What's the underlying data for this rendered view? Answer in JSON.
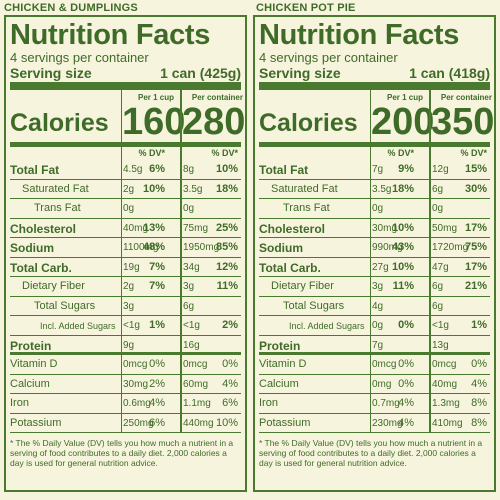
{
  "panels": [
    {
      "product": "CHICKEN & DUMPLINGS",
      "title": "Nutrition Facts",
      "servings": "4 servings per container",
      "serving_size_label": "Serving size",
      "serving_size_value": "1 can (425g)",
      "per1_header": "Per 1 cup",
      "per2_header": "Per container",
      "calories_label": "Calories",
      "calories1": "160",
      "calories2": "280",
      "dv_header": "% DV*",
      "rows": [
        {
          "label": "Total Fat",
          "a1": "4.5g",
          "d1": "6%",
          "a2": "8g",
          "d2": "10%"
        },
        {
          "label": "Saturated Fat",
          "a1": "2g",
          "d1": "10%",
          "a2": "3.5g",
          "d2": "18%"
        },
        {
          "label": "Trans Fat",
          "a1": "0g",
          "d1": "",
          "a2": "0g",
          "d2": ""
        },
        {
          "label": "Cholesterol",
          "a1": "40mg",
          "d1": "13%",
          "a2": "75mg",
          "d2": "25%"
        },
        {
          "label": "Sodium",
          "a1": "1100mg",
          "d1": "48%",
          "a2": "1950mg",
          "d2": "85%"
        },
        {
          "label": "Total Carb.",
          "a1": "19g",
          "d1": "7%",
          "a2": "34g",
          "d2": "12%"
        },
        {
          "label": "Dietary Fiber",
          "a1": "2g",
          "d1": "7%",
          "a2": "3g",
          "d2": "11%"
        },
        {
          "label": "Total Sugars",
          "a1": "3g",
          "d1": "",
          "a2": "6g",
          "d2": ""
        },
        {
          "label": "Incl. Added Sugars",
          "a1": "<1g",
          "d1": "1%",
          "a2": "<1g",
          "d2": "2%"
        },
        {
          "label": "Protein",
          "a1": "9g",
          "d1": "",
          "a2": "16g",
          "d2": ""
        },
        {
          "label": "Vitamin D",
          "a1": "0mcg",
          "d1": "0%",
          "a2": "0mcg",
          "d2": "0%"
        },
        {
          "label": "Calcium",
          "a1": "30mg",
          "d1": "2%",
          "a2": "60mg",
          "d2": "4%"
        },
        {
          "label": "Iron",
          "a1": "0.6mg",
          "d1": "4%",
          "a2": "1.1mg",
          "d2": "6%"
        },
        {
          "label": "Potassium",
          "a1": "250mg",
          "d1": "6%",
          "a2": "440mg",
          "d2": "10%"
        }
      ],
      "footnote": "* The % Daily Value (DV) tells you how much a nutrient in a serving of food contributes to a daily diet. 2,000 calories a day is used for general nutrition advice."
    },
    {
      "product": "CHICKEN POT PIE",
      "title": "Nutrition Facts",
      "servings": "4 servings per container",
      "serving_size_label": "Serving size",
      "serving_size_value": "1 can (418g)",
      "per1_header": "Per 1 cup",
      "per2_header": "Per container",
      "calories_label": "Calories",
      "calories1": "200",
      "calories2": "350",
      "dv_header": "% DV*",
      "rows": [
        {
          "label": "Total Fat",
          "a1": "7g",
          "d1": "9%",
          "a2": "12g",
          "d2": "15%"
        },
        {
          "label": "Saturated Fat",
          "a1": "3.5g",
          "d1": "18%",
          "a2": "6g",
          "d2": "30%"
        },
        {
          "label": "Trans Fat",
          "a1": "0g",
          "d1": "",
          "a2": "0g",
          "d2": ""
        },
        {
          "label": "Cholesterol",
          "a1": "30mg",
          "d1": "10%",
          "a2": "50mg",
          "d2": "17%"
        },
        {
          "label": "Sodium",
          "a1": "990mg",
          "d1": "43%",
          "a2": "1720mg",
          "d2": "75%"
        },
        {
          "label": "Total Carb.",
          "a1": "27g",
          "d1": "10%",
          "a2": "47g",
          "d2": "17%"
        },
        {
          "label": "Dietary Fiber",
          "a1": "3g",
          "d1": "11%",
          "a2": "6g",
          "d2": "21%"
        },
        {
          "label": "Total Sugars",
          "a1": "4g",
          "d1": "",
          "a2": "6g",
          "d2": ""
        },
        {
          "label": "Incl. Added Sugars",
          "a1": "0g",
          "d1": "0%",
          "a2": "<1g",
          "d2": "1%"
        },
        {
          "label": "Protein",
          "a1": "7g",
          "d1": "",
          "a2": "13g",
          "d2": ""
        },
        {
          "label": "Vitamin D",
          "a1": "0mcg",
          "d1": "0%",
          "a2": "0mcg",
          "d2": "0%"
        },
        {
          "label": "Calcium",
          "a1": "0mg",
          "d1": "0%",
          "a2": "40mg",
          "d2": "4%"
        },
        {
          "label": "Iron",
          "a1": "0.7mg",
          "d1": "4%",
          "a2": "1.3mg",
          "d2": "8%"
        },
        {
          "label": "Potassium",
          "a1": "230mg",
          "d1": "4%",
          "a2": "410mg",
          "d2": "8%"
        }
      ],
      "footnote": "* The % Daily Value (DV) tells you how much a nutrient in a serving of food contributes to a daily diet. 2,000 calories a day is used for general nutrition advice."
    }
  ]
}
